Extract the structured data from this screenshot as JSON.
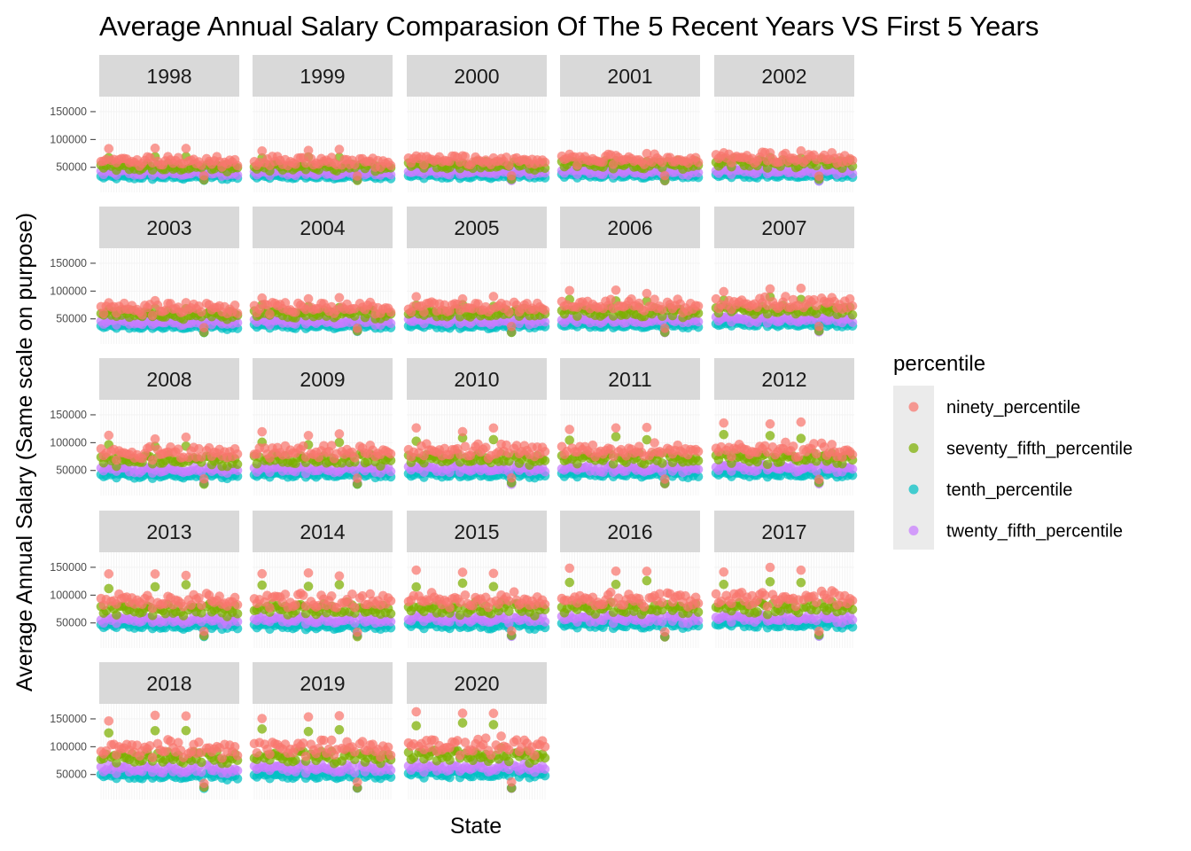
{
  "chart_data": {
    "type": "scatter",
    "title": "Average Annual Salary Comparasion Of The 5 Recent Years VS First 5 Years",
    "xlabel": "State",
    "ylabel": "Average Annual Salary (Same scale on purpose)",
    "facet_by": "year",
    "facets": [
      "1998",
      "1999",
      "2000",
      "2001",
      "2002",
      "2003",
      "2004",
      "2005",
      "2006",
      "2007",
      "2008",
      "2009",
      "2010",
      "2011",
      "2012",
      "2013",
      "2014",
      "2015",
      "2016",
      "2017",
      "2018",
      "2019",
      "2020"
    ],
    "facet_columns": 5,
    "y_ticks": [
      50000,
      100000,
      150000
    ],
    "ylim": [
      5000,
      177000
    ],
    "x_categories_count": 54,
    "grid": true,
    "legend": {
      "title": "percentile",
      "placement": "right",
      "entries": [
        "ninety_percentile",
        "seventy_fifth_percentile",
        "tenth_percentile",
        "twenty_fifth_percentile"
      ]
    },
    "series": [
      {
        "name": "ninety_percentile",
        "color": "#F8766D"
      },
      {
        "name": "seventy_fifth_percentile",
        "color": "#7CAE00"
      },
      {
        "name": "tenth_percentile",
        "color": "#00BFC4"
      },
      {
        "name": "twenty_fifth_percentile",
        "color": "#C77CFF"
      }
    ],
    "approx_levels_by_year": {
      "1998": {
        "tenth_percentile": 33000,
        "twenty_fifth_percentile": 40000,
        "seventy_fifth_percentile": 50000,
        "ninety_percentile": 60000
      },
      "1999": {
        "tenth_percentile": 33000,
        "twenty_fifth_percentile": 40000,
        "seventy_fifth_percentile": 50000,
        "ninety_percentile": 60000
      },
      "2000": {
        "tenth_percentile": 34000,
        "twenty_fifth_percentile": 41000,
        "seventy_fifth_percentile": 53000,
        "ninety_percentile": 62000
      },
      "2001": {
        "tenth_percentile": 35000,
        "twenty_fifth_percentile": 42000,
        "seventy_fifth_percentile": 55000,
        "ninety_percentile": 63000
      },
      "2002": {
        "tenth_percentile": 35000,
        "twenty_fifth_percentile": 43000,
        "seventy_fifth_percentile": 57000,
        "ninety_percentile": 66000
      },
      "2003": {
        "tenth_percentile": 36000,
        "twenty_fifth_percentile": 44000,
        "seventy_fifth_percentile": 57000,
        "ninety_percentile": 67000
      },
      "2004": {
        "tenth_percentile": 37000,
        "twenty_fifth_percentile": 45000,
        "seventy_fifth_percentile": 59000,
        "ninety_percentile": 69000
      },
      "2005": {
        "tenth_percentile": 37000,
        "twenty_fifth_percentile": 46000,
        "seventy_fifth_percentile": 60000,
        "ninety_percentile": 70000
      },
      "2006": {
        "tenth_percentile": 38000,
        "twenty_fifth_percentile": 47000,
        "seventy_fifth_percentile": 62000,
        "ninety_percentile": 73000
      },
      "2007": {
        "tenth_percentile": 40000,
        "twenty_fifth_percentile": 49000,
        "seventy_fifth_percentile": 65000,
        "ninety_percentile": 77000
      },
      "2008": {
        "tenth_percentile": 41000,
        "twenty_fifth_percentile": 51000,
        "seventy_fifth_percentile": 67000,
        "ninety_percentile": 80000
      },
      "2009": {
        "tenth_percentile": 42000,
        "twenty_fifth_percentile": 52000,
        "seventy_fifth_percentile": 69000,
        "ninety_percentile": 82000
      },
      "2010": {
        "tenth_percentile": 42000,
        "twenty_fifth_percentile": 53000,
        "seventy_fifth_percentile": 70000,
        "ninety_percentile": 84000
      },
      "2011": {
        "tenth_percentile": 43000,
        "twenty_fifth_percentile": 53000,
        "seventy_fifth_percentile": 71000,
        "ninety_percentile": 85000
      },
      "2012": {
        "tenth_percentile": 43000,
        "twenty_fifth_percentile": 54000,
        "seventy_fifth_percentile": 72000,
        "ninety_percentile": 86000
      },
      "2013": {
        "tenth_percentile": 44000,
        "twenty_fifth_percentile": 55000,
        "seventy_fifth_percentile": 73000,
        "ninety_percentile": 88000
      },
      "2014": {
        "tenth_percentile": 44000,
        "twenty_fifth_percentile": 55000,
        "seventy_fifth_percentile": 74000,
        "ninety_percentile": 89000
      },
      "2015": {
        "tenth_percentile": 45000,
        "twenty_fifth_percentile": 56000,
        "seventy_fifth_percentile": 75000,
        "ninety_percentile": 90000
      },
      "2016": {
        "tenth_percentile": 46000,
        "twenty_fifth_percentile": 57000,
        "seventy_fifth_percentile": 76000,
        "ninety_percentile": 92000
      },
      "2017": {
        "tenth_percentile": 47000,
        "twenty_fifth_percentile": 58000,
        "seventy_fifth_percentile": 77000,
        "ninety_percentile": 93000
      },
      "2018": {
        "tenth_percentile": 47000,
        "twenty_fifth_percentile": 59000,
        "seventy_fifth_percentile": 79000,
        "ninety_percentile": 95000
      },
      "2019": {
        "tenth_percentile": 48000,
        "twenty_fifth_percentile": 60000,
        "seventy_fifth_percentile": 81000,
        "ninety_percentile": 97000
      },
      "2020": {
        "tenth_percentile": 50000,
        "twenty_fifth_percentile": 62000,
        "seventy_fifth_percentile": 83000,
        "ninety_percentile": 100000
      }
    },
    "approx_max_by_year": {
      "1998": 85000,
      "1999": 85000,
      "2000": 72000,
      "2001": 75000,
      "2002": 82000,
      "2003": 85000,
      "2004": 90000,
      "2005": 93000,
      "2006": 103000,
      "2007": 107000,
      "2008": 115000,
      "2009": 120000,
      "2010": 130000,
      "2011": 133000,
      "2012": 137000,
      "2013": 142000,
      "2014": 144000,
      "2015": 147000,
      "2016": 150000,
      "2017": 152000,
      "2018": 157000,
      "2019": 162000,
      "2020": 172000
    },
    "approx_min": 25000
  }
}
